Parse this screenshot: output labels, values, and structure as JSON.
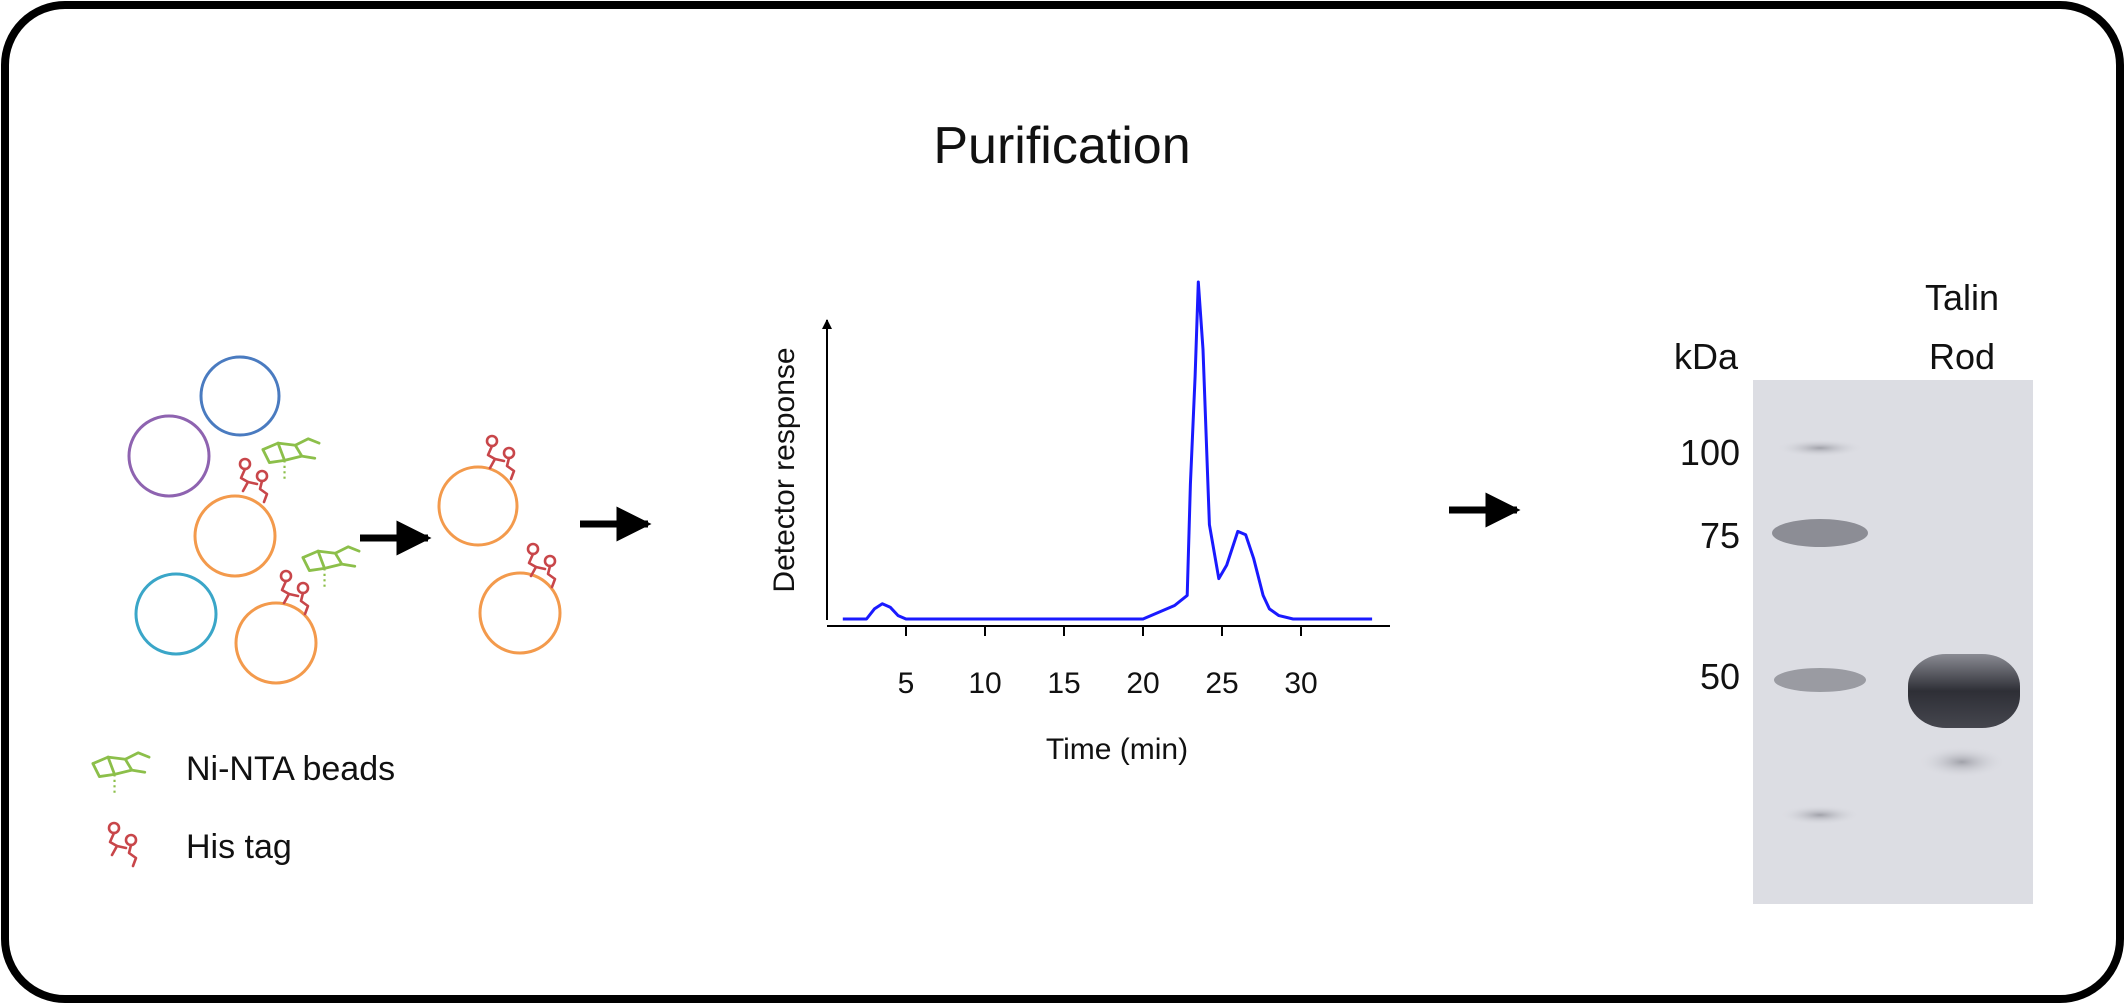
{
  "title": "Purification",
  "legend": {
    "beads_label": "Ni-NTA beads",
    "histag_label": "His tag"
  },
  "colors": {
    "frame": "#000000",
    "trace": "#1a1aff",
    "bead_orange": "#f39a4c",
    "cell_blue": "#4a7bc0",
    "cell_purple": "#8e63b0",
    "cell_cyan": "#3aa6c8",
    "ni_nta_green": "#8cbf4a",
    "his_tag_red": "#c8464a",
    "gel_background": "#dcdde3",
    "gel_band": "#2e2f36"
  },
  "chart_data": {
    "type": "line",
    "title": "",
    "xlabel": "Time (min)",
    "ylabel": "Detector response",
    "xlim": [
      0,
      35
    ],
    "ylim": [
      0,
      1
    ],
    "xticks": [
      5,
      10,
      15,
      20,
      25,
      30
    ],
    "series": [
      {
        "x": [
          1.0,
          2.5,
          3.0,
          3.5,
          4.0,
          4.5,
          5.0,
          10.0,
          15.0,
          20.0,
          21.0,
          22.0,
          22.8,
          23.0,
          23.3,
          23.5,
          23.8,
          24.2,
          24.8,
          25.3,
          26.0,
          26.5,
          27.0,
          27.6,
          28.0,
          28.6,
          29.5,
          31.0,
          34.5
        ],
        "y": [
          0.0,
          0.0,
          0.03,
          0.045,
          0.035,
          0.01,
          0.0,
          0.0,
          0.0,
          0.0,
          0.02,
          0.04,
          0.07,
          0.4,
          0.72,
          1.0,
          0.8,
          0.28,
          0.12,
          0.16,
          0.26,
          0.25,
          0.18,
          0.07,
          0.03,
          0.01,
          0.0,
          0.0,
          0.0
        ]
      }
    ]
  },
  "gel": {
    "unit_label": "kDa",
    "lane_label": [
      "Talin",
      "Rod"
    ],
    "markers": [
      {
        "label": "100",
        "kda": 100
      },
      {
        "label": "75",
        "kda": 75
      },
      {
        "label": "50",
        "kda": 50
      }
    ]
  }
}
